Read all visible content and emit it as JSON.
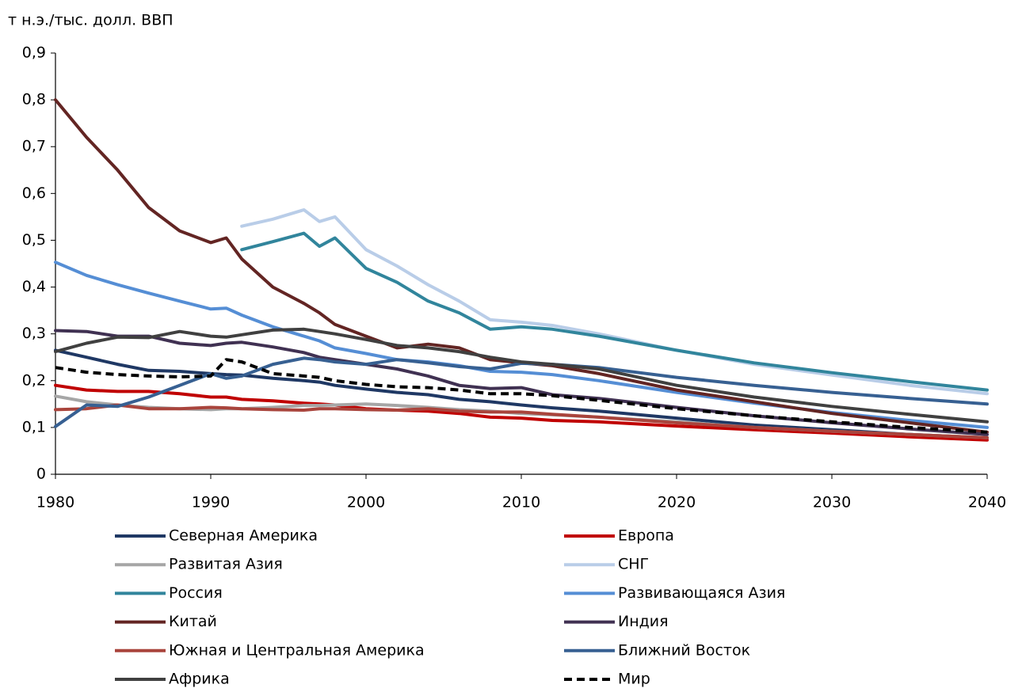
{
  "chart_data": {
    "type": "line",
    "y_label": "т н.э./тыс. долл. ВВП",
    "x": [
      1980,
      1982,
      1984,
      1986,
      1988,
      1990,
      1991,
      1992,
      1994,
      1996,
      1997,
      1998,
      2000,
      2002,
      2004,
      2006,
      2008,
      2010,
      2012,
      2015,
      2020,
      2025,
      2030,
      2035,
      2040
    ],
    "xlim": [
      1980,
      2040
    ],
    "xticks": [
      1980,
      1990,
      2000,
      2010,
      2020,
      2030,
      2040
    ],
    "ylim": [
      0,
      0.9
    ],
    "yticks": [
      0,
      {
        "value": 0.1,
        "label": "0,1"
      },
      {
        "value": 0.2,
        "label": "0,2"
      },
      {
        "value": 0.3,
        "label": "0,3"
      },
      {
        "value": 0.4,
        "label": "0,4"
      },
      {
        "value": 0.5,
        "label": "0,5"
      },
      {
        "value": 0.6,
        "label": "0,6"
      },
      {
        "value": 0.7,
        "label": "0,7"
      },
      {
        "value": 0.8,
        "label": "0,8"
      },
      {
        "value": 0.9,
        "label": "0,9"
      }
    ],
    "grid": false,
    "series": [
      {
        "name": "Северная Америка",
        "color": "#1f3864",
        "values": [
          0.265,
          0.25,
          0.235,
          0.222,
          0.22,
          0.215,
          0.213,
          0.212,
          0.205,
          0.2,
          0.197,
          0.19,
          0.182,
          0.175,
          0.17,
          0.16,
          0.155,
          0.148,
          0.142,
          0.135,
          0.12,
          0.105,
          0.095,
          0.085,
          0.078
        ]
      },
      {
        "name": "Европа",
        "color": "#c00000",
        "values": [
          0.19,
          0.18,
          0.177,
          0.177,
          0.172,
          0.165,
          0.165,
          0.16,
          0.157,
          0.152,
          0.15,
          0.148,
          0.14,
          0.137,
          0.135,
          0.13,
          0.122,
          0.12,
          0.115,
          0.112,
          0.103,
          0.095,
          0.088,
          0.08,
          0.073
        ]
      },
      {
        "name": "Развитая Азия",
        "color": "#a6a6a6",
        "values": [
          0.167,
          0.155,
          0.148,
          0.143,
          0.14,
          0.138,
          0.14,
          0.14,
          0.143,
          0.147,
          0.147,
          0.148,
          0.15,
          0.147,
          0.143,
          0.138,
          0.135,
          0.13,
          0.127,
          0.122,
          0.112,
          0.1,
          0.092,
          0.085,
          0.078
        ]
      },
      {
        "name": "СНГ",
        "color": "#b9cde8",
        "values": [
          null,
          null,
          null,
          null,
          null,
          null,
          null,
          0.53,
          0.545,
          0.565,
          0.54,
          0.55,
          0.48,
          0.445,
          0.405,
          0.37,
          0.33,
          0.325,
          0.318,
          0.3,
          0.265,
          0.235,
          0.212,
          0.19,
          0.172
        ]
      },
      {
        "name": "Россия",
        "color": "#31859c",
        "values": [
          null,
          null,
          null,
          null,
          null,
          null,
          null,
          0.48,
          0.497,
          0.515,
          0.487,
          0.505,
          0.44,
          0.41,
          0.37,
          0.345,
          0.31,
          0.315,
          0.31,
          0.295,
          0.265,
          0.238,
          0.217,
          0.198,
          0.18
        ]
      },
      {
        "name": "Развивающаяся Азия",
        "color": "#558ed5",
        "values": [
          0.453,
          0.425,
          0.405,
          0.387,
          0.37,
          0.353,
          0.355,
          0.34,
          0.315,
          0.295,
          0.285,
          0.27,
          0.258,
          0.245,
          0.24,
          0.232,
          0.22,
          0.218,
          0.213,
          0.2,
          0.175,
          0.152,
          0.132,
          0.115,
          0.1
        ]
      },
      {
        "name": "Китай",
        "color": "#632523",
        "values": [
          0.8,
          0.72,
          0.65,
          0.57,
          0.52,
          0.495,
          0.505,
          0.46,
          0.4,
          0.365,
          0.345,
          0.32,
          0.295,
          0.27,
          0.278,
          0.27,
          0.245,
          0.238,
          0.232,
          0.215,
          0.18,
          0.155,
          0.13,
          0.11,
          0.09
        ]
      },
      {
        "name": "Индия",
        "color": "#403152",
        "values": [
          0.307,
          0.305,
          0.295,
          0.295,
          0.28,
          0.275,
          0.28,
          0.282,
          0.272,
          0.26,
          0.25,
          0.245,
          0.235,
          0.225,
          0.21,
          0.19,
          0.183,
          0.185,
          0.17,
          0.162,
          0.143,
          0.125,
          0.11,
          0.097,
          0.085
        ]
      },
      {
        "name": "Южная и Центральная Америка",
        "color": "#a9443c",
        "values": [
          0.138,
          0.14,
          0.148,
          0.14,
          0.14,
          0.143,
          0.142,
          0.14,
          0.138,
          0.137,
          0.14,
          0.14,
          0.138,
          0.137,
          0.14,
          0.135,
          0.133,
          0.133,
          0.128,
          0.122,
          0.11,
          0.1,
          0.092,
          0.085,
          0.078
        ]
      },
      {
        "name": "Ближний Восток",
        "color": "#376092",
        "values": [
          0.102,
          0.148,
          0.145,
          0.165,
          0.19,
          0.215,
          0.205,
          0.21,
          0.235,
          0.248,
          0.245,
          0.24,
          0.235,
          0.245,
          0.238,
          0.23,
          0.225,
          0.237,
          0.235,
          0.228,
          0.207,
          0.19,
          0.175,
          0.162,
          0.15
        ]
      },
      {
        "name": "Африка",
        "color": "#404040",
        "values": [
          0.262,
          0.28,
          0.293,
          0.292,
          0.305,
          0.295,
          0.293,
          0.298,
          0.308,
          0.31,
          0.305,
          0.3,
          0.288,
          0.275,
          0.27,
          0.262,
          0.25,
          0.24,
          0.235,
          0.225,
          0.19,
          0.165,
          0.145,
          0.128,
          0.112
        ]
      },
      {
        "name": "Мир",
        "color": "#000000",
        "style": "dashed",
        "values": [
          0.228,
          0.218,
          0.213,
          0.21,
          0.208,
          0.21,
          0.245,
          0.24,
          0.215,
          0.21,
          0.207,
          0.2,
          0.192,
          0.187,
          0.185,
          0.18,
          0.172,
          0.172,
          0.168,
          0.158,
          0.14,
          0.125,
          0.112,
          0.1,
          0.09
        ]
      }
    ]
  }
}
